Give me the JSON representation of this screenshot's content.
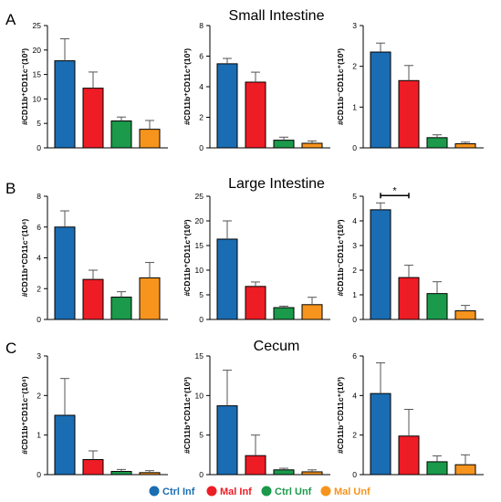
{
  "panels": [
    {
      "letter": "A",
      "title": "Small Intestine"
    },
    {
      "letter": "B",
      "title": "Large Intestine"
    },
    {
      "letter": "C",
      "title": "Cecum"
    }
  ],
  "legend": [
    {
      "name": "Ctrl Inf",
      "color": "#1a6db3"
    },
    {
      "name": "Mal Inf",
      "color": "#ee1c25"
    },
    {
      "name": "Ctrl Unf",
      "color": "#1a9a4a"
    },
    {
      "name": "Mal Unf",
      "color": "#f7941d"
    }
  ],
  "chart_data": [
    {
      "type": "bar",
      "panel": "A",
      "position": 1,
      "ylabel": "#CD11b⁺CD11c⁻(10³)",
      "ylim": [
        0,
        25
      ],
      "yticks": [
        0,
        5,
        10,
        15,
        20,
        25
      ],
      "categories": [
        "Ctrl Inf",
        "Mal Inf",
        "Ctrl Unf",
        "Mal Unf"
      ],
      "values": [
        17.8,
        12.2,
        5.5,
        3.8
      ],
      "errors": [
        4.5,
        3.3,
        0.8,
        1.8
      ]
    },
    {
      "type": "bar",
      "panel": "A",
      "position": 2,
      "ylabel": "#CD11b⁺CD11c⁺(10³)",
      "ylim": [
        0,
        8
      ],
      "yticks": [
        0,
        2,
        4,
        6,
        8
      ],
      "categories": [
        "Ctrl Inf",
        "Mal Inf",
        "Ctrl Unf",
        "Mal Unf"
      ],
      "values": [
        5.5,
        4.3,
        0.5,
        0.3
      ],
      "errors": [
        0.35,
        0.65,
        0.2,
        0.15
      ]
    },
    {
      "type": "bar",
      "panel": "A",
      "position": 3,
      "ylabel": "#CD11b⁻CD11c⁺(10³)",
      "ylim": [
        0,
        3
      ],
      "yticks": [
        0,
        1,
        2,
        3
      ],
      "categories": [
        "Ctrl Inf",
        "Mal Inf",
        "Ctrl Unf",
        "Mal Unf"
      ],
      "values": [
        2.35,
        1.65,
        0.25,
        0.1
      ],
      "errors": [
        0.22,
        0.37,
        0.07,
        0.04
      ]
    },
    {
      "type": "bar",
      "panel": "B",
      "position": 1,
      "ylabel": "#CD11b⁺CD11c⁻(10⁴)",
      "ylim": [
        0,
        8
      ],
      "yticks": [
        0,
        2,
        4,
        6,
        8
      ],
      "categories": [
        "Ctrl Inf",
        "Mal Inf",
        "Ctrl Unf",
        "Mal Unf"
      ],
      "values": [
        6.0,
        2.6,
        1.45,
        2.7
      ],
      "errors": [
        1.05,
        0.6,
        0.35,
        1.0
      ]
    },
    {
      "type": "bar",
      "panel": "B",
      "position": 2,
      "ylabel": "#CD11b⁺CD11c⁺(10³)",
      "ylim": [
        0,
        25
      ],
      "yticks": [
        0,
        5,
        10,
        15,
        20,
        25
      ],
      "categories": [
        "Ctrl Inf",
        "Mal Inf",
        "Ctrl Unf",
        "Mal Unf"
      ],
      "values": [
        16.3,
        6.7,
        2.4,
        3.0
      ],
      "errors": [
        3.7,
        0.9,
        0.3,
        1.5
      ]
    },
    {
      "type": "bar",
      "panel": "B",
      "position": 3,
      "ylabel": "#CD11b⁻CD11c⁺(10³)",
      "ylim": [
        0,
        5
      ],
      "yticks": [
        0,
        1,
        2,
        3,
        4,
        5
      ],
      "categories": [
        "Ctrl Inf",
        "Mal Inf",
        "Ctrl Unf",
        "Mal Unf"
      ],
      "values": [
        4.45,
        1.7,
        1.05,
        0.35
      ],
      "errors": [
        0.28,
        0.5,
        0.48,
        0.22
      ],
      "significance": {
        "from": 0,
        "to": 1,
        "label": "*"
      }
    },
    {
      "type": "bar",
      "panel": "C",
      "position": 1,
      "ylabel": "#CD11b⁺CD11c⁻(10⁴)",
      "ylim": [
        0,
        3
      ],
      "yticks": [
        0,
        1,
        2,
        3
      ],
      "categories": [
        "Ctrl Inf",
        "Mal Inf",
        "Ctrl Unf",
        "Mal Unf"
      ],
      "values": [
        1.5,
        0.38,
        0.08,
        0.05
      ],
      "errors": [
        0.93,
        0.22,
        0.05,
        0.05
      ]
    },
    {
      "type": "bar",
      "panel": "C",
      "position": 2,
      "ylabel": "#CD11b⁺CD11c⁺(10³)",
      "ylim": [
        0,
        15
      ],
      "yticks": [
        0,
        5,
        10,
        15
      ],
      "categories": [
        "Ctrl Inf",
        "Mal Inf",
        "Ctrl Unf",
        "Mal Unf"
      ],
      "values": [
        8.7,
        2.4,
        0.6,
        0.35
      ],
      "errors": [
        4.5,
        2.6,
        0.2,
        0.25
      ]
    },
    {
      "type": "bar",
      "panel": "C",
      "position": 3,
      "ylabel": "#CD11b⁻CD11c⁺(10³)",
      "ylim": [
        0,
        6
      ],
      "yticks": [
        0,
        2,
        4,
        6
      ],
      "categories": [
        "Ctrl Inf",
        "Mal Inf",
        "Ctrl Unf",
        "Mal Unf"
      ],
      "values": [
        4.1,
        1.95,
        0.65,
        0.5
      ],
      "errors": [
        1.55,
        1.35,
        0.3,
        0.5
      ]
    }
  ]
}
